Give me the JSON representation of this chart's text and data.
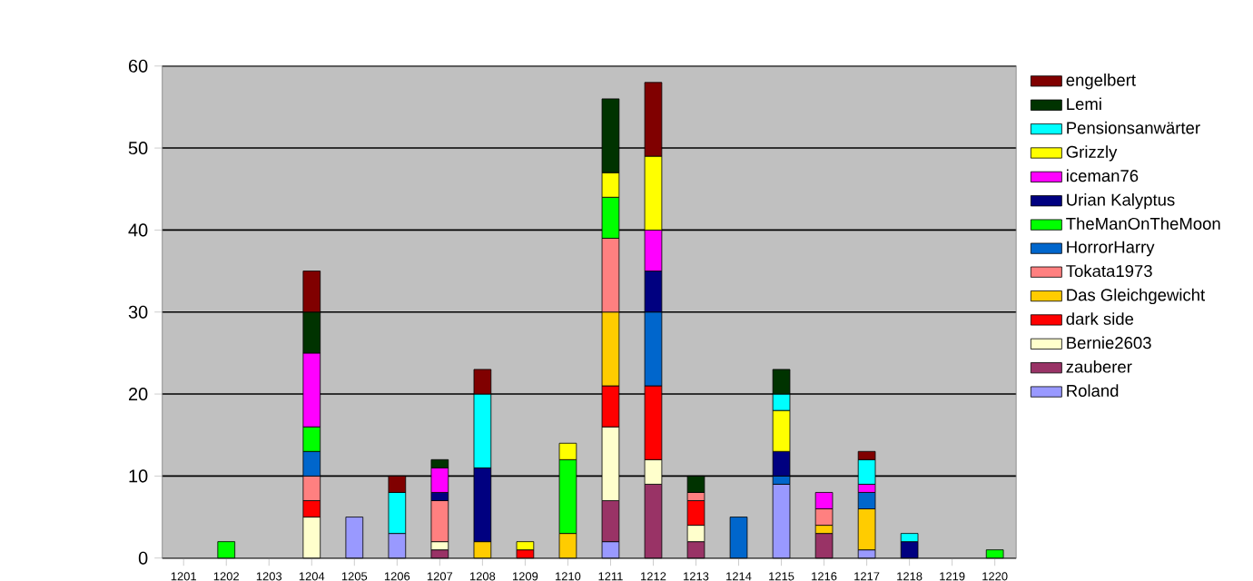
{
  "chart_data": {
    "type": "bar",
    "stacked": true,
    "categories": [
      "1201",
      "1202",
      "1203",
      "1204",
      "1205",
      "1206",
      "1207",
      "1208",
      "1209",
      "1210",
      "1211",
      "1212",
      "1213",
      "1214",
      "1215",
      "1216",
      "1217",
      "1218",
      "1219",
      "1220"
    ],
    "ylim": [
      0,
      60
    ],
    "yticks": [
      0,
      10,
      20,
      30,
      40,
      50,
      60
    ],
    "grid": "y",
    "legend": "right",
    "series": [
      {
        "name": "Roland",
        "color": "#9999ff",
        "values": [
          null,
          null,
          null,
          null,
          5,
          3,
          null,
          null,
          null,
          null,
          2,
          null,
          null,
          null,
          9,
          null,
          1,
          null,
          null,
          null
        ]
      },
      {
        "name": "zauberer",
        "color": "#993366",
        "values": [
          null,
          null,
          null,
          null,
          null,
          null,
          1,
          null,
          null,
          null,
          5,
          9,
          2,
          null,
          null,
          3,
          null,
          null,
          null,
          null
        ]
      },
      {
        "name": "Bernie2603",
        "color": "#ffffcc",
        "values": [
          null,
          null,
          null,
          5,
          null,
          null,
          1,
          null,
          null,
          null,
          9,
          3,
          2,
          null,
          null,
          null,
          null,
          null,
          null,
          null
        ]
      },
      {
        "name": "dark side",
        "color": "#ff0000",
        "values": [
          null,
          null,
          null,
          2,
          null,
          null,
          null,
          null,
          1,
          null,
          5,
          9,
          3,
          null,
          null,
          null,
          null,
          null,
          null,
          null
        ]
      },
      {
        "name": "Das Gleichgewicht",
        "color": "#ffcc00",
        "values": [
          null,
          null,
          null,
          null,
          null,
          null,
          null,
          2,
          null,
          3,
          9,
          null,
          null,
          null,
          null,
          1,
          5,
          null,
          null,
          null
        ]
      },
      {
        "name": "Tokata1973",
        "color": "#ff8080",
        "values": [
          null,
          null,
          null,
          3,
          null,
          null,
          5,
          null,
          null,
          null,
          9,
          null,
          1,
          null,
          null,
          2,
          null,
          null,
          null,
          null
        ]
      },
      {
        "name": "HorrorHarry",
        "color": "#0066cc",
        "values": [
          null,
          null,
          null,
          3,
          null,
          null,
          null,
          null,
          null,
          null,
          null,
          9,
          null,
          5,
          1,
          null,
          2,
          null,
          null,
          null
        ]
      },
      {
        "name": "TheManOnTheMoon",
        "color": "#00ff00",
        "values": [
          null,
          2,
          null,
          3,
          null,
          null,
          null,
          null,
          null,
          9,
          5,
          null,
          null,
          null,
          null,
          null,
          null,
          null,
          null,
          1
        ]
      },
      {
        "name": "Urian Kalyptus",
        "color": "#000080",
        "values": [
          null,
          null,
          null,
          null,
          null,
          null,
          1,
          9,
          null,
          null,
          null,
          5,
          null,
          null,
          3,
          null,
          null,
          2,
          null,
          null
        ]
      },
      {
        "name": "iceman76",
        "color": "#ff00ff",
        "values": [
          null,
          null,
          null,
          9,
          null,
          null,
          3,
          null,
          null,
          null,
          null,
          5,
          null,
          null,
          null,
          2,
          1,
          null,
          null,
          null
        ]
      },
      {
        "name": "Grizzly",
        "color": "#ffff00",
        "values": [
          null,
          null,
          null,
          null,
          null,
          null,
          null,
          null,
          1,
          2,
          3,
          9,
          null,
          null,
          5,
          null,
          null,
          null,
          null,
          null
        ]
      },
      {
        "name": "Pensionsanwärter",
        "color": "#00ffff",
        "values": [
          null,
          null,
          null,
          null,
          null,
          5,
          null,
          9,
          null,
          null,
          null,
          null,
          null,
          null,
          2,
          null,
          3,
          1,
          null,
          null
        ]
      },
      {
        "name": "Lemi",
        "color": "#003300",
        "values": [
          null,
          null,
          null,
          5,
          null,
          null,
          1,
          null,
          null,
          null,
          9,
          null,
          2,
          null,
          3,
          null,
          null,
          null,
          null,
          null
        ]
      },
      {
        "name": "engelbert",
        "color": "#800000",
        "values": [
          null,
          null,
          null,
          5,
          null,
          2,
          null,
          3,
          null,
          null,
          null,
          9,
          null,
          null,
          null,
          null,
          1,
          null,
          null,
          null
        ]
      }
    ]
  }
}
